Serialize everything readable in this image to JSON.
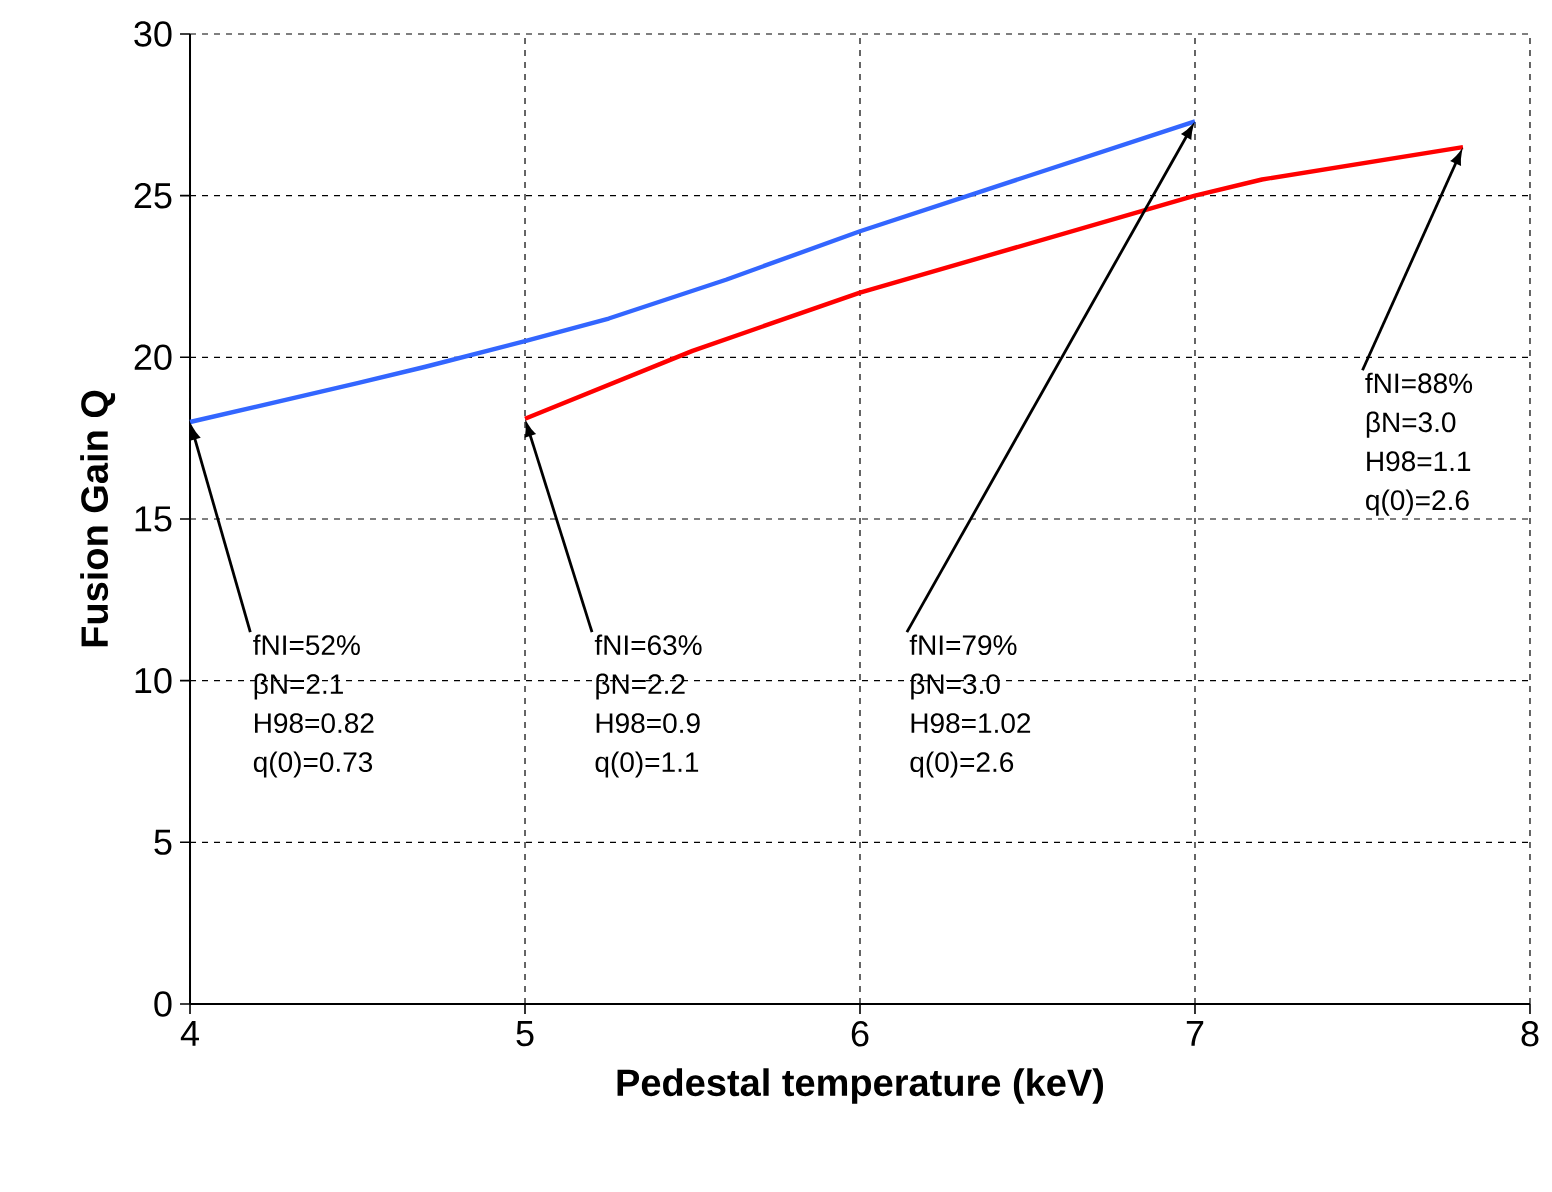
{
  "chart_data": {
    "type": "line",
    "xlabel": "Pedestal temperature (keV)",
    "ylabel": "Fusion Gain Q",
    "xlim": [
      4,
      8
    ],
    "xticks": [
      4,
      5,
      6,
      7,
      8
    ],
    "ylim": [
      0,
      30
    ],
    "yticks": [
      0,
      5,
      10,
      15,
      20,
      25,
      30
    ],
    "grid": true,
    "marker": "none",
    "line_style": "solid",
    "series": [
      {
        "color": "#3366ff",
        "x": [
          4,
          4.5,
          4.7,
          5,
          5.25,
          5.6,
          6,
          6.5,
          7
        ],
        "values": [
          18,
          19.2,
          19.7,
          20.5,
          21.2,
          22.4,
          23.9,
          25.6,
          27.3
        ]
      },
      {
        "color": "#ff0000",
        "x": [
          5,
          5.5,
          6,
          6.5,
          7,
          7.2,
          7.8
        ],
        "values": [
          18.1,
          20.2,
          22,
          23.5,
          25,
          25.5,
          26.5
        ]
      }
    ],
    "annotations": [
      {
        "text": "fNI=52% βN=2.1 H98=0.82 q(0)=0.73",
        "x": 4,
        "y": 18
      },
      {
        "text": "fNI=63% βN=2.2 H98=0.9 q(0)=1.1",
        "x": 5,
        "y": 18.1
      },
      {
        "text": "fNI=79% βN=3.0 H98=1.02 q(0)=2.6",
        "x": 7,
        "y": 27.3
      },
      {
        "text": "fNI=88% βN=3.0 H98=1.1 q(0)=2.6",
        "x": 7.8,
        "y": 26.5
      }
    ]
  }
}
